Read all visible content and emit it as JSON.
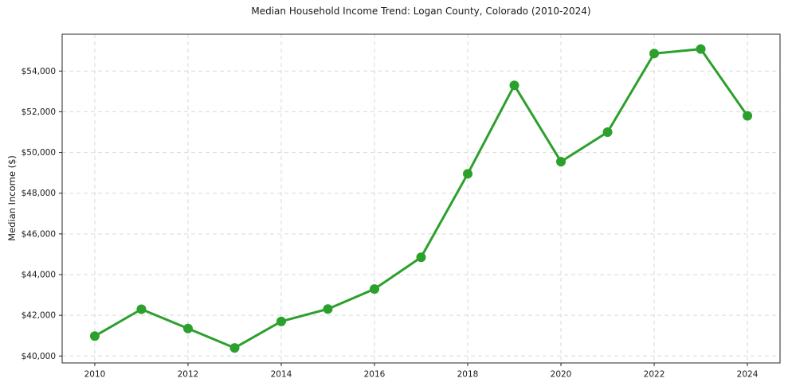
{
  "chart_data": {
    "type": "line",
    "title": "Median Household Income Trend: Logan County, Colorado (2010-2024)",
    "ylabel": "Median Income ($)",
    "xlabel": "",
    "x": [
      2010,
      2011,
      2012,
      2013,
      2014,
      2015,
      2016,
      2017,
      2018,
      2019,
      2020,
      2021,
      2022,
      2023,
      2024
    ],
    "values": [
      40980,
      42300,
      41350,
      40400,
      41700,
      42310,
      43290,
      44850,
      48950,
      53300,
      49550,
      51000,
      54860,
      55080,
      51800
    ],
    "xticks": [
      2010,
      2012,
      2014,
      2016,
      2018,
      2020,
      2022,
      2024
    ],
    "xtick_labels": [
      "2010",
      "2012",
      "2014",
      "2016",
      "2018",
      "2020",
      "2022",
      "2024"
    ],
    "yticks": [
      40000,
      42000,
      44000,
      46000,
      48000,
      50000,
      52000,
      54000
    ],
    "ytick_labels": [
      "$40,000",
      "$42,000",
      "$44,000",
      "$46,000",
      "$48,000",
      "$50,000",
      "$52,000",
      "$54,000"
    ],
    "xlim": [
      2009.3,
      2024.7
    ],
    "ylim": [
      39660,
      55810
    ],
    "grid": true,
    "grid_style": "dashed",
    "legend": false,
    "colors": {
      "line": "#2ca02c",
      "marker": "#2ca02c",
      "grid": "#d9d9d9",
      "spine": "#262626",
      "text": "#1a1a1a",
      "background": "#ffffff"
    }
  }
}
